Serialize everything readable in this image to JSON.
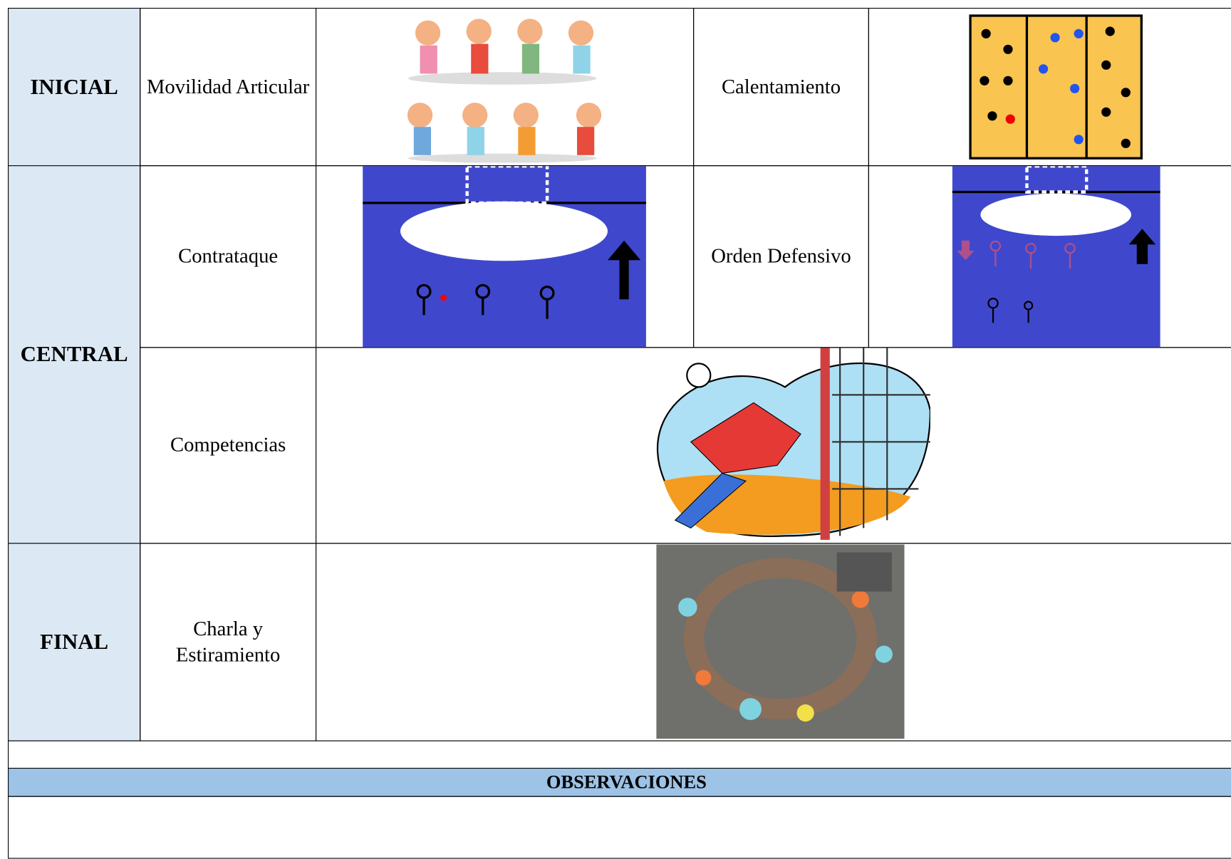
{
  "table": {
    "rows": [
      {
        "stage": "INICIAL",
        "activity": "Movilidad Articular",
        "activity2": "Calentamiento"
      },
      {
        "stage": "CENTRAL",
        "activity": "Contrataque",
        "activity2": "Orden Defensivo"
      },
      {
        "activity": "Competencias"
      },
      {
        "stage": "FINAL",
        "activity": "Charla y Estiramiento"
      }
    ]
  },
  "observations": {
    "title": "OBSERVACIONES"
  }
}
